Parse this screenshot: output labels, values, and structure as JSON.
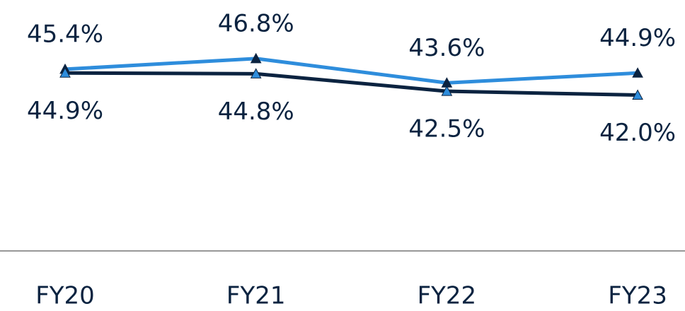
{
  "chart_data": {
    "type": "line",
    "categories": [
      "FY20",
      "FY21",
      "FY22",
      "FY23"
    ],
    "series": [
      {
        "color": "#2e8ddc",
        "marker_color": "#0b2340",
        "values": [
          45.4,
          46.8,
          43.6,
          44.9
        ],
        "value_labels": [
          "45.4%",
          "46.8%",
          "43.6%",
          "44.9%"
        ],
        "label_position": "above"
      },
      {
        "color": "#0b2340",
        "marker_color": "#2e8ddc",
        "values": [
          44.9,
          44.8,
          42.5,
          42.0
        ],
        "value_labels": [
          "44.9%",
          "44.8%",
          "42.5%",
          "42.0%"
        ],
        "label_position": "below"
      }
    ],
    "ylim": [
      21.5,
      54.5
    ]
  }
}
